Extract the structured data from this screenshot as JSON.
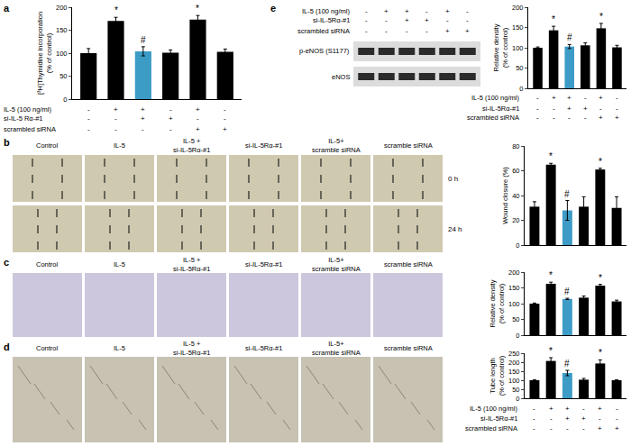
{
  "chart_data": [
    {
      "panel": "a",
      "type": "bar",
      "ylabel": [
        "[³H]Thymidine incorporation",
        "(% of control)"
      ],
      "categories": [
        null,
        null,
        null,
        null,
        null,
        null
      ],
      "values": [
        100,
        170,
        104,
        101,
        173,
        103
      ],
      "errors": [
        10,
        8,
        10,
        6,
        9,
        6
      ],
      "significance": [
        null,
        "*",
        "#",
        null,
        "*",
        null
      ],
      "colors": [
        "#000000",
        "#000000",
        "#3d9cc6",
        "#000000",
        "#000000",
        "#000000"
      ],
      "ylim": [
        0,
        200
      ],
      "yticks": [
        0,
        50,
        100,
        150,
        200
      ],
      "grid": false,
      "tick_labels": "y",
      "conditions": [
        {
          "label": "IL-5 (100 ng/ml)",
          "signs": [
            "-",
            "+",
            "+",
            "-",
            "+",
            "-"
          ]
        },
        {
          "label": "si-IL-5 Rα-#1",
          "signs": [
            "-",
            "-",
            "+",
            "+",
            "-",
            "-"
          ]
        },
        {
          "label": "scrambled siRNA",
          "signs": [
            "-",
            "-",
            "-",
            "-",
            "+",
            "+"
          ]
        }
      ]
    },
    {
      "panel": "b",
      "type": "bar",
      "ylabel": [
        "Wound closure (%)"
      ],
      "categories": [
        null,
        null,
        null,
        null,
        null,
        null
      ],
      "values": [
        31,
        65,
        28,
        31,
        61,
        30
      ],
      "errors": [
        4,
        1,
        8,
        8,
        1,
        9
      ],
      "significance": [
        null,
        "*",
        "#",
        null,
        "*",
        null
      ],
      "colors": [
        "#000000",
        "#000000",
        "#3d9cc6",
        "#000000",
        "#000000",
        "#000000"
      ],
      "ylim": [
        0,
        80
      ],
      "yticks": [
        0,
        20,
        40,
        60,
        80
      ],
      "grid": false,
      "tick_labels": "y"
    },
    {
      "panel": "c",
      "type": "bar",
      "ylabel": [
        "Relative density",
        "(% of control)"
      ],
      "categories": [
        null,
        null,
        null,
        null,
        null,
        null
      ],
      "values": [
        100,
        163,
        115,
        119,
        157,
        107
      ],
      "errors": [
        2,
        5,
        2,
        5,
        4,
        4
      ],
      "significance": [
        null,
        "*",
        "#",
        null,
        "*",
        null
      ],
      "colors": [
        "#000000",
        "#000000",
        "#3d9cc6",
        "#000000",
        "#000000",
        "#000000"
      ],
      "ylim": [
        0,
        200
      ],
      "yticks": [
        0,
        50,
        100,
        150,
        200
      ],
      "grid": false,
      "tick_labels": "y"
    },
    {
      "panel": "d",
      "type": "bar",
      "ylabel": [
        "Tube length",
        "(% of control)"
      ],
      "categories": [
        null,
        null,
        null,
        null,
        null,
        null
      ],
      "values": [
        100,
        207,
        140,
        103,
        193,
        100
      ],
      "errors": [
        2,
        18,
        15,
        7,
        20,
        2
      ],
      "significance": [
        null,
        "*",
        "#",
        null,
        "*",
        null
      ],
      "colors": [
        "#000000",
        "#000000",
        "#3d9cc6",
        "#000000",
        "#000000",
        "#000000"
      ],
      "ylim": [
        0,
        250
      ],
      "yticks": [
        0,
        50,
        100,
        150,
        200,
        250
      ],
      "grid": false,
      "tick_labels": "y",
      "conditions": [
        {
          "label": "IL-5 (100 ng/ml)",
          "signs": [
            "-",
            "+",
            "+",
            "-",
            "+",
            "-"
          ]
        },
        {
          "label": "si-IL-5Rα-#1",
          "signs": [
            "-",
            "-",
            "+",
            "+",
            "-",
            "-"
          ]
        },
        {
          "label": "scrambled siRNA",
          "signs": [
            "-",
            "-",
            "-",
            "-",
            "+",
            "+"
          ]
        }
      ]
    },
    {
      "panel": "e",
      "type": "bar",
      "ylabel": [
        "Relative density",
        "(% of control)"
      ],
      "categories": [
        null,
        null,
        null,
        null,
        null,
        null
      ],
      "values": [
        100,
        143,
        103,
        106,
        148,
        101
      ],
      "errors": [
        2,
        10,
        5,
        6,
        12,
        5
      ],
      "significance": [
        null,
        "*",
        "#",
        null,
        "*",
        null
      ],
      "colors": [
        "#000000",
        "#000000",
        "#3d9cc6",
        "#000000",
        "#000000",
        "#000000"
      ],
      "ylim": [
        0,
        200
      ],
      "yticks": [
        0,
        50,
        100,
        150,
        200
      ],
      "grid": false,
      "tick_labels": "y",
      "conditions": [
        {
          "label": "IL-5 (100 ng/ml)",
          "signs": [
            "-",
            "+",
            "+",
            "-",
            "+",
            "-"
          ]
        },
        {
          "label": "si-IL-5Rα-#1",
          "signs": [
            "-",
            "-",
            "+",
            "+",
            "-",
            "-"
          ]
        },
        {
          "label": "scrambled siRNA",
          "signs": [
            "-",
            "-",
            "-",
            "-",
            "+",
            "+"
          ]
        }
      ]
    }
  ],
  "image_panels": [
    {
      "panel": "b",
      "labels": [
        [
          "Control"
        ],
        [
          "IL-5"
        ],
        [
          "IL-5 +",
          "si-IL-5Rα-#1"
        ],
        [
          "si-IL-5Rα-#1"
        ],
        [
          "IL-5+",
          "scramble siRNA"
        ],
        [
          "scramble siRNA"
        ]
      ],
      "rows": [
        "0 h",
        "24 h"
      ]
    },
    {
      "panel": "c",
      "labels": [
        [
          "Control"
        ],
        [
          "IL-5"
        ],
        [
          "IL-5 +",
          "si-IL-5Rα-#1"
        ],
        [
          "si-IL-5Rα-#1"
        ],
        [
          "IL-5+",
          "scramble siRNA"
        ],
        [
          "scramble siRNA"
        ]
      ]
    },
    {
      "panel": "d",
      "labels": [
        [
          "Control"
        ],
        [
          "IL-5"
        ],
        [
          "IL-5 +",
          "si-IL-5Rα-#1"
        ],
        [
          "si-IL-5Rα-#1"
        ],
        [
          "IL-5+",
          "scramble siRNA"
        ],
        [
          "scramble siRNA"
        ]
      ]
    }
  ],
  "blot": {
    "panel": "e",
    "conditions": [
      {
        "label": "IL-5 (100 ng/ml)",
        "signs": [
          "-",
          "+",
          "+",
          "-",
          "+",
          "-"
        ]
      },
      {
        "label": "si-IL-5Rα-#1",
        "signs": [
          "-",
          "-",
          "+",
          "+",
          "-",
          "-"
        ]
      },
      {
        "label": "scrambled siRNA",
        "signs": [
          "-",
          "-",
          "-",
          "-",
          "+",
          "+"
        ]
      }
    ],
    "bands": [
      "p-eNOS (S1177)",
      "eNOS"
    ]
  }
}
